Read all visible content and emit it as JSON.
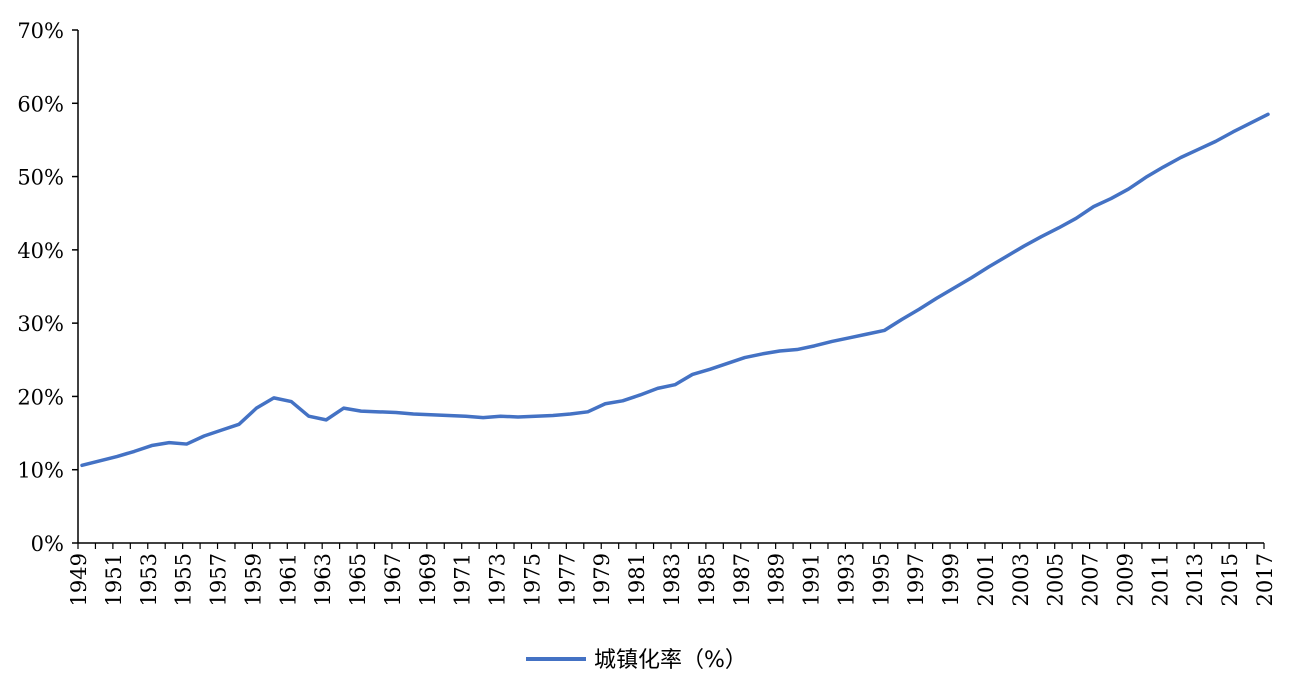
{
  "chart_data": {
    "type": "line",
    "title": "",
    "xlabel": "",
    "ylabel": "",
    "ylim": [
      0,
      70
    ],
    "yticks": [
      "0%",
      "10%",
      "20%",
      "30%",
      "40%",
      "50%",
      "60%",
      "70%"
    ],
    "x": [
      1949,
      1950,
      1951,
      1952,
      1953,
      1954,
      1955,
      1956,
      1957,
      1958,
      1959,
      1960,
      1961,
      1962,
      1963,
      1964,
      1965,
      1966,
      1967,
      1968,
      1969,
      1970,
      1971,
      1972,
      1973,
      1974,
      1975,
      1976,
      1977,
      1978,
      1979,
      1980,
      1981,
      1982,
      1983,
      1984,
      1985,
      1986,
      1987,
      1988,
      1989,
      1990,
      1991,
      1992,
      1993,
      1994,
      1995,
      1996,
      1997,
      1998,
      1999,
      2000,
      2001,
      2002,
      2003,
      2004,
      2005,
      2006,
      2007,
      2008,
      2009,
      2010,
      2011,
      2012,
      2013,
      2014,
      2015,
      2016,
      2017
    ],
    "xtick_labels": [
      "1949",
      "1951",
      "1953",
      "1955",
      "1957",
      "1959",
      "1961",
      "1963",
      "1965",
      "1967",
      "1969",
      "1971",
      "1973",
      "1975",
      "1977",
      "1979",
      "1981",
      "1983",
      "1985",
      "1987",
      "1989",
      "1991",
      "1993",
      "1995",
      "1997",
      "1999",
      "2001",
      "2003",
      "2005",
      "2007",
      "2009",
      "2011",
      "2013",
      "2015",
      "2017"
    ],
    "series": [
      {
        "name": "城镇化率（%）",
        "color": "#4472C4",
        "values": [
          10.6,
          11.2,
          11.8,
          12.5,
          13.3,
          13.7,
          13.5,
          14.6,
          15.4,
          16.2,
          18.4,
          19.8,
          19.3,
          17.3,
          16.8,
          18.4,
          18.0,
          17.9,
          17.8,
          17.6,
          17.5,
          17.4,
          17.3,
          17.1,
          17.3,
          17.2,
          17.3,
          17.4,
          17.6,
          17.9,
          19.0,
          19.4,
          20.2,
          21.1,
          21.6,
          23.0,
          23.7,
          24.5,
          25.3,
          25.8,
          26.2,
          26.4,
          26.9,
          27.5,
          28.0,
          28.5,
          29.0,
          30.5,
          31.9,
          33.4,
          34.8,
          36.2,
          37.7,
          39.1,
          40.5,
          41.8,
          43.0,
          44.3,
          45.9,
          47.0,
          48.3,
          49.9,
          51.3,
          52.6,
          53.7,
          54.8,
          56.1,
          57.3,
          58.5
        ]
      }
    ],
    "grid": false,
    "legend": "bottom"
  }
}
